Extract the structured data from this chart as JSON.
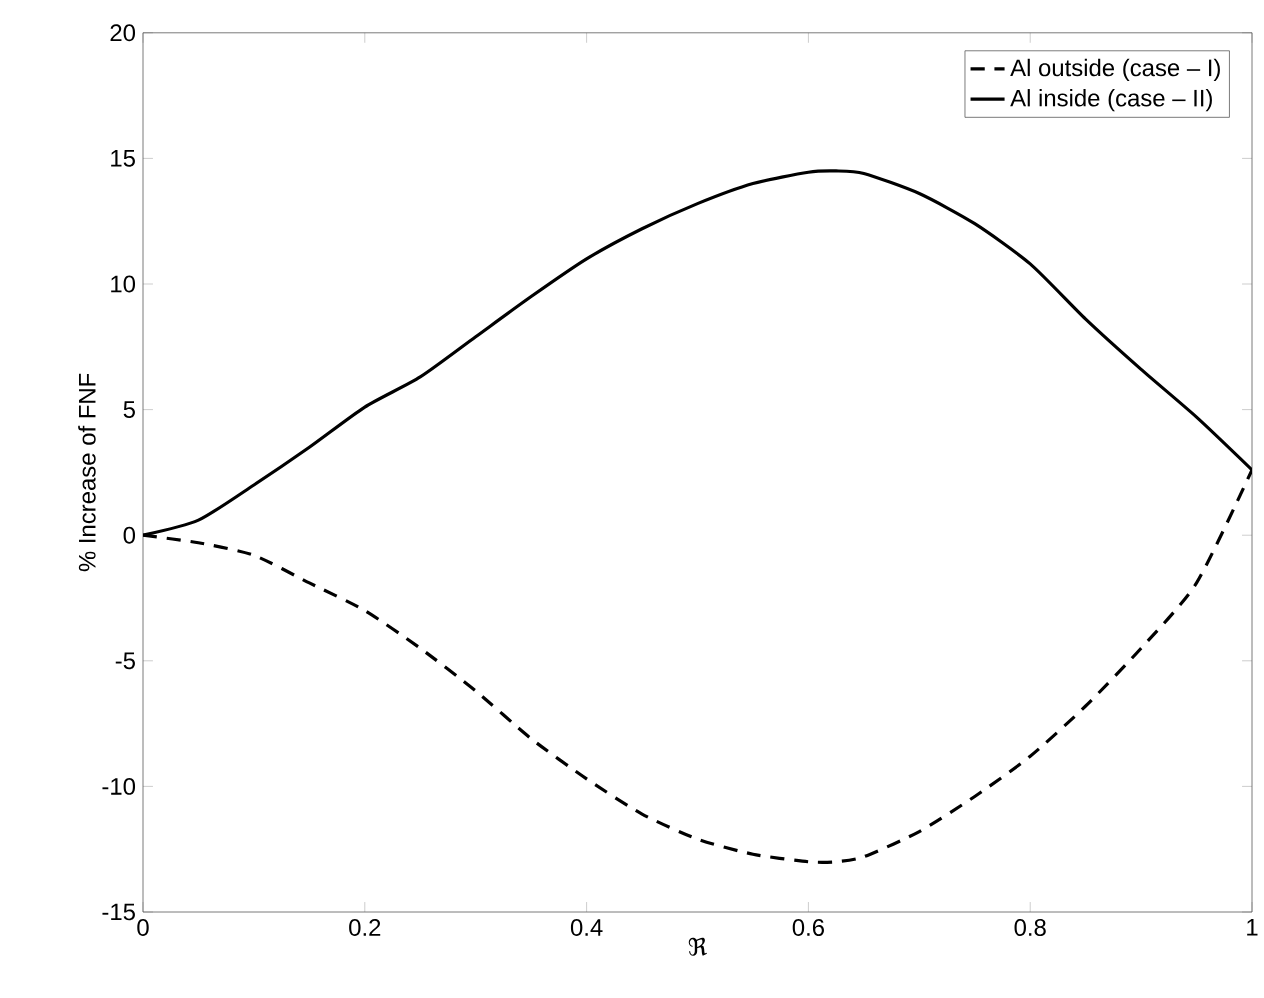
{
  "chart_data": {
    "type": "line",
    "xlabel": "ℜ",
    "ylabel": "% Increase of FNF",
    "x": [
      0,
      0.05,
      0.1,
      0.15,
      0.2,
      0.25,
      0.3,
      0.35,
      0.4,
      0.45,
      0.5,
      0.55,
      0.6,
      0.625,
      0.65,
      0.7,
      0.75,
      0.8,
      0.85,
      0.9,
      0.95,
      1.0
    ],
    "series": [
      {
        "name": "Al outside (case – I)",
        "color": "#000000",
        "line_style": "dashed",
        "values": [
          0,
          -0.3,
          -0.8,
          -1.9,
          -3.0,
          -4.5,
          -6.2,
          -8.1,
          -9.7,
          -11.1,
          -12.1,
          -12.7,
          -13.0,
          -13.0,
          -12.8,
          -11.8,
          -10.4,
          -8.8,
          -6.8,
          -4.5,
          -1.9,
          2.6
        ]
      },
      {
        "name": "Al inside (case – II)",
        "color": "#000000",
        "line_style": "solid",
        "values": [
          0,
          0.6,
          2.0,
          3.5,
          5.1,
          6.3,
          7.9,
          9.5,
          11.0,
          12.2,
          13.2,
          14.0,
          14.45,
          14.5,
          14.4,
          13.6,
          12.4,
          10.8,
          8.6,
          6.6,
          4.7,
          2.6
        ]
      }
    ],
    "xlim": [
      0,
      1
    ],
    "ylim": [
      -15,
      20
    ],
    "xticks": [
      0,
      0.2,
      0.4,
      0.6,
      0.8,
      1
    ],
    "yticks": [
      -15,
      -10,
      -5,
      0,
      5,
      10,
      15,
      20
    ],
    "grid": false,
    "legend": "top right",
    "marker": "none"
  }
}
